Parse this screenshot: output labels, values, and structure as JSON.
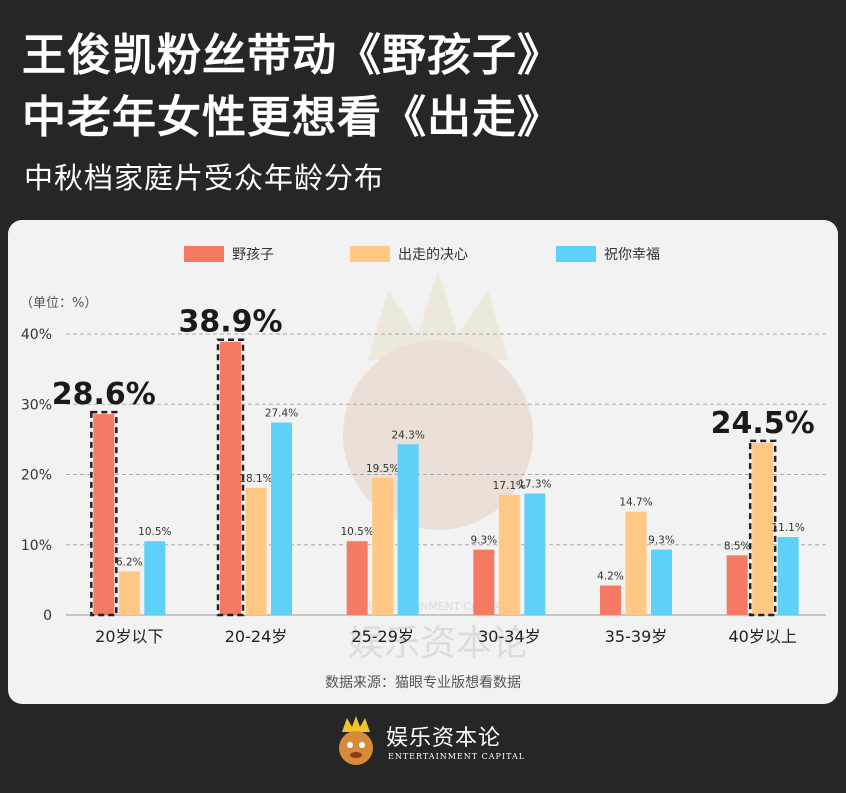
{
  "header": {
    "title_line1": "王俊凯粉丝带动《野孩子》",
    "title_line2": "中老年女性更想看《出走》",
    "subtitle": "中秋档家庭片受众年龄分布"
  },
  "footer": {
    "brand": "娱乐资本论",
    "brand_sub": "ENTERTAINMENT CAPITAL"
  },
  "watermark": {
    "text_cn": "娱乐资本论",
    "text_en": "ENTERTAINMENT CAPITAL"
  },
  "chart_data": {
    "type": "bar",
    "unit_label": "（单位：%）",
    "source": "数据来源：猫眼专业版想看数据",
    "categories": [
      "20岁以下",
      "20-24岁",
      "25-29岁",
      "30-34岁",
      "35-39岁",
      "40岁以上"
    ],
    "series": [
      {
        "name": "野孩子",
        "color": "#f47a63",
        "values": [
          28.6,
          38.9,
          10.5,
          9.3,
          4.2,
          8.5
        ],
        "labels": [
          "",
          "",
          "10.5%",
          "9.3%",
          "4.2%",
          "8.5%"
        ]
      },
      {
        "name": "出走的决心",
        "color": "#ffc885",
        "values": [
          6.2,
          18.1,
          19.5,
          17.1,
          14.7,
          24.5
        ],
        "labels": [
          "6.2%",
          "18.1%",
          "19.5%",
          "17.1%",
          "14.7%",
          ""
        ]
      },
      {
        "name": "祝你幸福",
        "color": "#5fd0f7",
        "values": [
          10.5,
          27.4,
          24.3,
          17.3,
          9.3,
          11.1
        ],
        "labels": [
          "10.5%",
          "27.4%",
          "24.3%",
          "17.3%",
          "9.3%",
          "11.1%"
        ]
      }
    ],
    "highlights": [
      {
        "category_index": 0,
        "series_index": 0,
        "label": "28.6%"
      },
      {
        "category_index": 1,
        "series_index": 0,
        "label": "38.9%"
      },
      {
        "category_index": 5,
        "series_index": 1,
        "label": "24.5%"
      }
    ],
    "y_ticks": [
      0,
      10,
      20,
      30,
      40
    ],
    "y_tick_labels": [
      "0",
      "10%",
      "20%",
      "30%",
      "40%"
    ],
    "ylim": [
      0,
      40
    ],
    "grid": true,
    "legend_position": "top"
  }
}
